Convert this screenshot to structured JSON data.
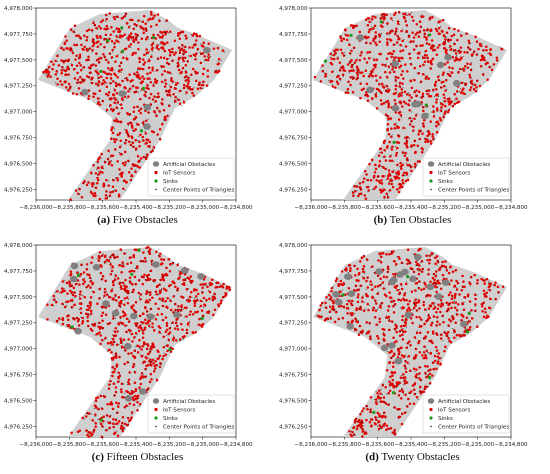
{
  "colors": {
    "region": "#cfcfcf",
    "obstacle": "#808080",
    "sensor": "#e00000",
    "sink": "#1a9a1a",
    "center": "#000000"
  },
  "chart_data": [
    {
      "type": "scatter",
      "caption_letter": "(a)",
      "caption_text": "Five Obstacles",
      "obstacle_count": 5,
      "xlim": [
        -8236000,
        -8234800
      ],
      "ylim": [
        4976150,
        4978000
      ],
      "x_ticks": [
        "−8,236,000",
        "−8,235,800",
        "−8,235,600",
        "−8,235,400",
        "−8,235,200",
        "−8,235,000",
        "−8,234,800"
      ],
      "y_ticks": [
        "4,978,000",
        "4,977,750",
        "4,977,500",
        "4,977,250",
        "4,977,000",
        "4,976,750",
        "4,976,500",
        "4,976,250"
      ],
      "legend": [
        "Artificial Obstacles",
        "IoT Sensors",
        "Sinks",
        "Center Points of Triangles"
      ],
      "legend_position": "lower-right"
    },
    {
      "type": "scatter",
      "caption_letter": "(b)",
      "caption_text": "Ten Obstacles",
      "obstacle_count": 10,
      "xlim": [
        -8236000,
        -8234800
      ],
      "ylim": [
        4976150,
        4978000
      ],
      "x_ticks": [
        "−8,236,000",
        "−8,235,800",
        "−8,235,600",
        "−8,235,400",
        "−8,235,200",
        "−8,235,000",
        "−8,234,800"
      ],
      "y_ticks": [
        "4,978,000",
        "4,977,750",
        "4,977,500",
        "4,977,250",
        "4,977,000",
        "4,976,750",
        "4,976,500",
        "4,976,250"
      ],
      "legend": [
        "Artificial Obstacles",
        "IoT Sensors",
        "Sinks",
        "Center Points of Triangles"
      ],
      "legend_position": "lower-right"
    },
    {
      "type": "scatter",
      "caption_letter": "(c)",
      "caption_text": "Fifteen Obstacles",
      "obstacle_count": 15,
      "xlim": [
        -8236000,
        -8234800
      ],
      "ylim": [
        4976150,
        4978000
      ],
      "x_ticks": [
        "−8,236,000",
        "−8,235,800",
        "−8,235,600",
        "−8,235,400",
        "−8,235,200",
        "−8,235,000",
        "−8,234,800"
      ],
      "y_ticks": [
        "4,978,000",
        "4,977,750",
        "4,977,500",
        "4,977,250",
        "4,977,000",
        "4,976,750",
        "4,976,500",
        "4,976,250"
      ],
      "legend": [
        "Artificial Obstacles",
        "IoT Sensors",
        "Sinks",
        "Center Points of Triangles"
      ],
      "legend_position": "lower-right"
    },
    {
      "type": "scatter",
      "caption_letter": "(d)",
      "caption_text": "Twenty Obstacles",
      "obstacle_count": 20,
      "xlim": [
        -8236000,
        -8234800
      ],
      "ylim": [
        4976150,
        4978000
      ],
      "x_ticks": [
        "−8,236,000",
        "−8,235,800",
        "−8,235,600",
        "−8,235,400",
        "−8,235,200",
        "−8,235,000",
        "−8,234,800"
      ],
      "y_ticks": [
        "4,978,000",
        "4,977,750",
        "4,977,500",
        "4,977,250",
        "4,977,000",
        "4,976,750",
        "4,976,500",
        "4,976,250"
      ],
      "legend": [
        "Artificial Obstacles",
        "IoT Sensors",
        "Sinks",
        "Center Points of Triangles"
      ],
      "legend_position": "lower-right"
    }
  ]
}
